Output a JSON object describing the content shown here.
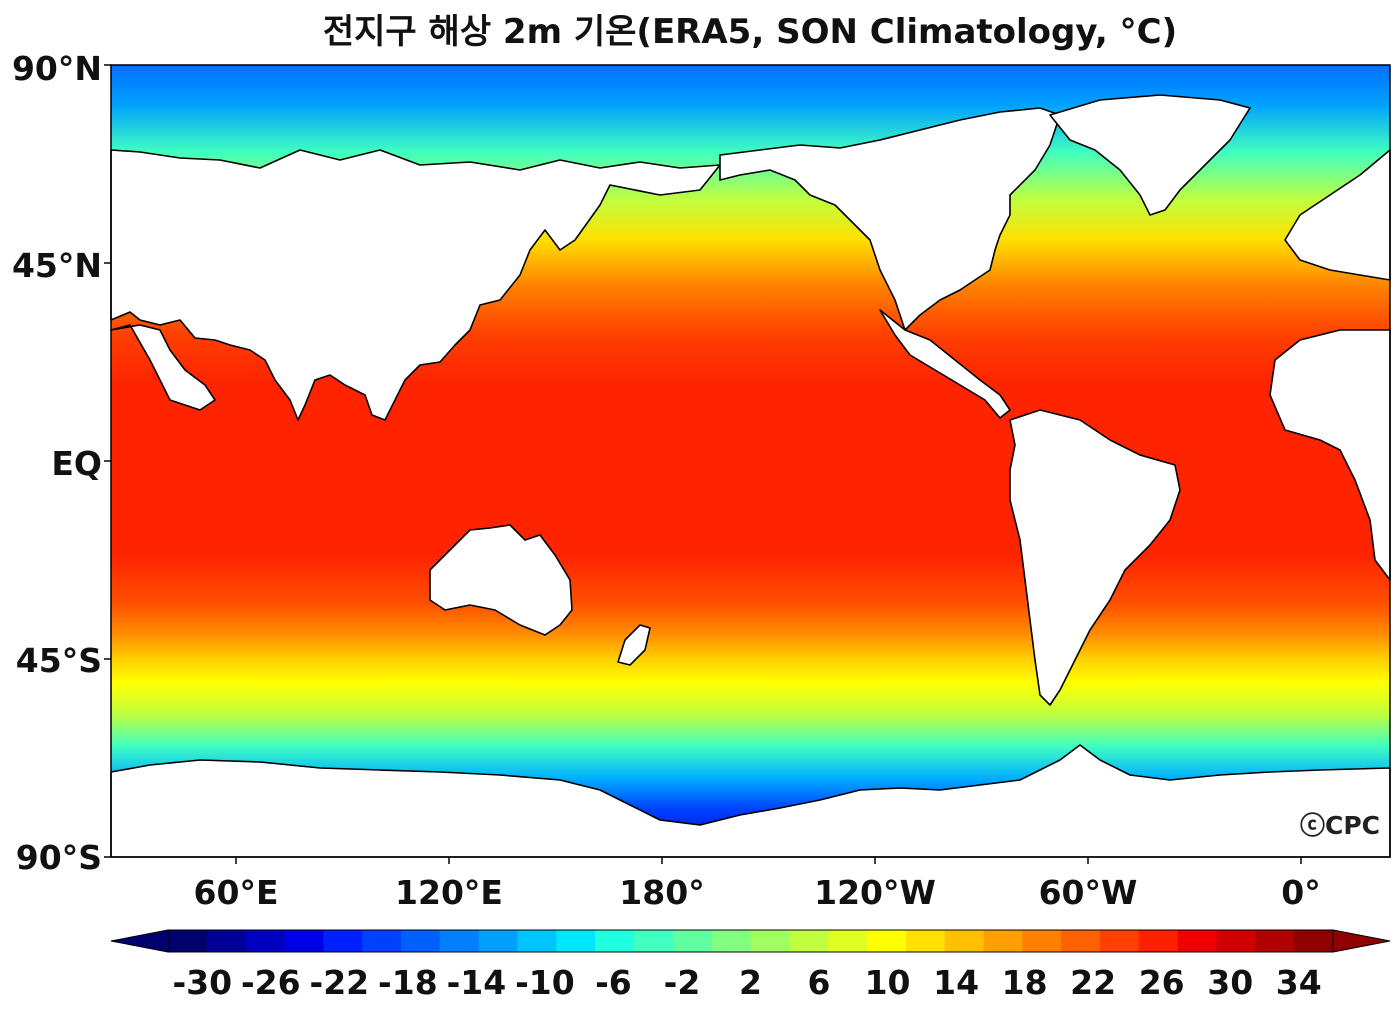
{
  "title": "전지구 해상 2m 기온(ERA5, SON Climatology, °C)",
  "credit": "ⓒCPC",
  "y_axis_labels": [
    "90°N",
    "45°N",
    "EQ",
    "45°S",
    "90°S"
  ],
  "x_axis_labels": [
    "60°E",
    "120°E",
    "180°",
    "120°W",
    "60°W",
    "0°"
  ],
  "colorbar": {
    "tick_labels": [
      "-30",
      "-26",
      "-22",
      "-18",
      "-14",
      "-10",
      "-6",
      "-2",
      "2",
      "6",
      "10",
      "14",
      "18",
      "22",
      "26",
      "30",
      "34"
    ],
    "min": -32,
    "max": 36,
    "step": 2,
    "extend": "both",
    "colors": [
      "#00006e",
      "#000096",
      "#0000c0",
      "#0000e6",
      "#0020ff",
      "#0040ff",
      "#0060ff",
      "#0080ff",
      "#00a0ff",
      "#00c4ff",
      "#00e6ff",
      "#20ffe0",
      "#40ffc0",
      "#60ffa0",
      "#80ff80",
      "#a0ff60",
      "#c0ff40",
      "#e0ff20",
      "#ffff00",
      "#ffe000",
      "#ffc000",
      "#ffa000",
      "#ff8000",
      "#ff6000",
      "#ff4000",
      "#ff2000",
      "#f00000",
      "#d00000",
      "#b00000",
      "#900000"
    ]
  }
}
